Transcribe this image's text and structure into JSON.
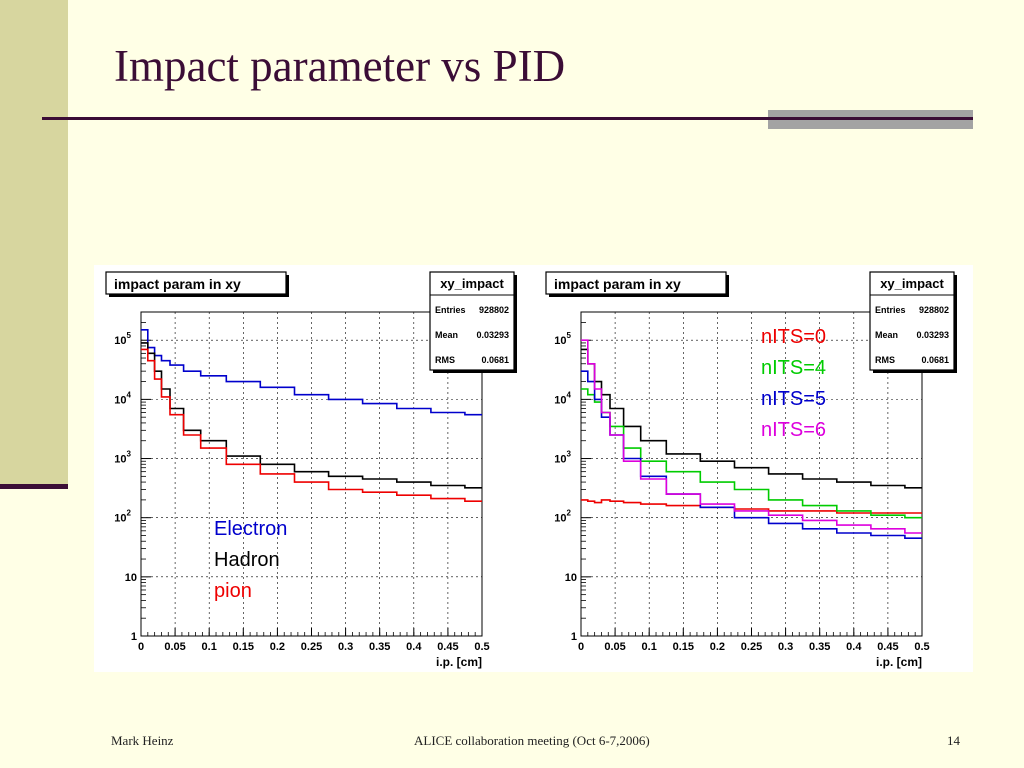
{
  "slide": {
    "title": "Impact parameter vs PID",
    "footer_left": "Mark Heinz",
    "footer_center": "ALICE collaboration meeting (Oct 6-7,2006)",
    "footer_right": "14"
  },
  "chart_data": [
    {
      "type": "line",
      "title": "impact param in xy",
      "xlabel": "i.p. [cm]",
      "ylabel": "",
      "xlim": [
        0,
        0.5
      ],
      "ylim": [
        1,
        300000
      ],
      "log_y": true,
      "grid": true,
      "x_ticks": [
        "0",
        "0.05",
        "0.1",
        "0.15",
        "0.2",
        "0.25",
        "0.3",
        "0.35",
        "0.4",
        "0.45",
        "0.5"
      ],
      "y_ticks": [
        {
          "value": 1,
          "base": "1",
          "exp": ""
        },
        {
          "value": 10,
          "base": "10",
          "exp": ""
        },
        {
          "value": 100,
          "base": "10",
          "exp": "2"
        },
        {
          "value": 1000,
          "base": "10",
          "exp": "3"
        },
        {
          "value": 10000,
          "base": "10",
          "exp": "4"
        },
        {
          "value": 100000,
          "base": "10",
          "exp": "5"
        }
      ],
      "stats_box": {
        "name": "xy_impact",
        "rows": [
          {
            "label": "Entries",
            "value": "928802"
          },
          {
            "label": "Mean",
            "value": "0.03293"
          },
          {
            "label": "RMS",
            "value": "0.0681"
          }
        ]
      },
      "legend": {
        "position": "bottom-center",
        "entries": [
          {
            "text": "Electron",
            "color": "#0000cc"
          },
          {
            "text": "Hadron",
            "color": "#000000"
          },
          {
            "text": "pion",
            "color": "#ee0000"
          }
        ]
      },
      "x": [
        0.005,
        0.015,
        0.025,
        0.035,
        0.05,
        0.075,
        0.1,
        0.15,
        0.2,
        0.25,
        0.3,
        0.35,
        0.4,
        0.45,
        0.5
      ],
      "series": [
        {
          "color": "#0000cc",
          "values": [
            150000,
            75000,
            55000,
            45000,
            38000,
            30000,
            25000,
            20000,
            16000,
            12000,
            10000,
            8500,
            7000,
            6000,
            5500
          ]
        },
        {
          "color": "#000000",
          "values": [
            90000,
            60000,
            30000,
            15000,
            7000,
            3000,
            2000,
            1100,
            800,
            600,
            500,
            450,
            400,
            350,
            320
          ]
        },
        {
          "color": "#ee0000",
          "values": [
            70000,
            45000,
            22000,
            11000,
            5500,
            2500,
            1500,
            800,
            550,
            400,
            300,
            270,
            240,
            210,
            190
          ]
        }
      ]
    },
    {
      "type": "line",
      "title": "impact param in xy",
      "xlabel": "i.p. [cm]",
      "ylabel": "",
      "xlim": [
        0,
        0.5
      ],
      "ylim": [
        1,
        300000
      ],
      "log_y": true,
      "grid": true,
      "x_ticks": [
        "0",
        "0.05",
        "0.1",
        "0.15",
        "0.2",
        "0.25",
        "0.3",
        "0.35",
        "0.4",
        "0.45",
        "0.5"
      ],
      "y_ticks": [
        {
          "value": 1,
          "base": "1",
          "exp": ""
        },
        {
          "value": 10,
          "base": "10",
          "exp": ""
        },
        {
          "value": 100,
          "base": "10",
          "exp": "2"
        },
        {
          "value": 1000,
          "base": "10",
          "exp": "3"
        },
        {
          "value": 10000,
          "base": "10",
          "exp": "4"
        },
        {
          "value": 100000,
          "base": "10",
          "exp": "5"
        }
      ],
      "stats_box": {
        "name": "xy_impact",
        "rows": [
          {
            "label": "Entries",
            "value": "928802"
          },
          {
            "label": "Mean",
            "value": "0.03293"
          },
          {
            "label": "RMS",
            "value": "0.0681"
          }
        ]
      },
      "legend": {
        "position": "top-right",
        "entries": [
          {
            "text": "nITS=0",
            "color": "#ee0000"
          },
          {
            "text": "nITS=4",
            "color": "#00cc00"
          },
          {
            "text": "nITS=5",
            "color": "#0000cc"
          },
          {
            "text": "nITS=6",
            "color": "#dd00dd"
          }
        ]
      },
      "x": [
        0.005,
        0.015,
        0.025,
        0.035,
        0.05,
        0.075,
        0.1,
        0.15,
        0.2,
        0.25,
        0.3,
        0.35,
        0.4,
        0.45,
        0.5
      ],
      "series": [
        {
          "color": "#000000",
          "values": [
            70000,
            40000,
            20000,
            12000,
            7000,
            3500,
            2000,
            1200,
            900,
            700,
            550,
            450,
            400,
            350,
            320
          ]
        },
        {
          "color": "#ee0000",
          "values": [
            200,
            190,
            180,
            200,
            190,
            180,
            170,
            160,
            150,
            140,
            130,
            130,
            120,
            120,
            120
          ]
        },
        {
          "color": "#00cc00",
          "values": [
            15000,
            12000,
            9000,
            6000,
            3500,
            1500,
            900,
            600,
            400,
            300,
            200,
            160,
            130,
            110,
            100
          ]
        },
        {
          "color": "#0000cc",
          "values": [
            30000,
            20000,
            10000,
            5000,
            2500,
            1000,
            500,
            250,
            150,
            100,
            80,
            65,
            55,
            50,
            45
          ]
        },
        {
          "color": "#dd00dd",
          "values": [
            100000,
            40000,
            15000,
            6000,
            2500,
            900,
            450,
            250,
            170,
            130,
            110,
            90,
            75,
            65,
            55
          ]
        }
      ]
    }
  ]
}
